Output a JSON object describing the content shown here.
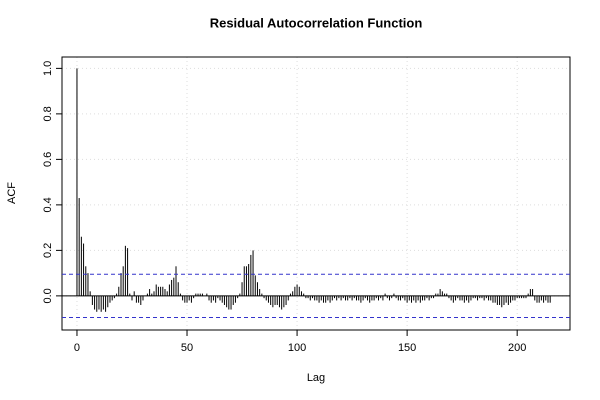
{
  "chart_data": {
    "type": "acf",
    "title": "Residual Autocorrelation Function",
    "x_label": "Lag",
    "y_label": "ACF",
    "values": [
      1.0,
      0.43,
      0.26,
      0.23,
      0.13,
      0.1,
      0.02,
      -0.04,
      -0.06,
      -0.07,
      -0.06,
      -0.07,
      -0.06,
      -0.07,
      -0.05,
      -0.03,
      -0.02,
      -0.01,
      0.01,
      0.04,
      0.1,
      0.13,
      0.22,
      0.21,
      0.01,
      -0.02,
      0.02,
      -0.03,
      -0.03,
      -0.04,
      -0.02,
      0.0,
      0.01,
      0.03,
      0.01,
      0.02,
      0.05,
      0.04,
      0.04,
      0.04,
      0.03,
      0.02,
      0.05,
      0.07,
      0.08,
      0.13,
      0.06,
      0.01,
      -0.02,
      -0.03,
      -0.03,
      -0.02,
      -0.03,
      -0.01,
      0.01,
      0.01,
      0.01,
      0.01,
      0.0,
      0.01,
      -0.02,
      -0.03,
      -0.02,
      -0.03,
      -0.01,
      -0.02,
      -0.03,
      -0.04,
      -0.05,
      -0.06,
      -0.06,
      -0.04,
      -0.03,
      -0.01,
      0.01,
      0.06,
      0.13,
      0.13,
      0.14,
      0.18,
      0.2,
      0.09,
      0.06,
      0.03,
      0.01,
      -0.01,
      -0.02,
      -0.03,
      -0.04,
      -0.05,
      -0.04,
      -0.04,
      -0.05,
      -0.06,
      -0.05,
      -0.04,
      -0.02,
      0.01,
      0.02,
      0.04,
      0.05,
      0.04,
      0.02,
      0.01,
      -0.01,
      -0.01,
      -0.02,
      -0.01,
      -0.02,
      -0.02,
      -0.03,
      -0.02,
      -0.03,
      -0.03,
      -0.02,
      -0.03,
      -0.02,
      -0.01,
      -0.02,
      -0.01,
      -0.02,
      -0.01,
      -0.02,
      -0.02,
      -0.01,
      -0.02,
      -0.01,
      -0.02,
      -0.02,
      -0.03,
      -0.02,
      -0.01,
      -0.02,
      -0.03,
      -0.02,
      -0.02,
      -0.01,
      -0.02,
      -0.01,
      -0.02,
      0.01,
      -0.01,
      -0.02,
      -0.01,
      0.01,
      -0.01,
      -0.02,
      -0.02,
      -0.01,
      -0.02,
      -0.03,
      -0.02,
      -0.03,
      -0.02,
      -0.03,
      -0.02,
      -0.03,
      -0.02,
      -0.02,
      -0.01,
      -0.02,
      -0.01,
      -0.01,
      0.01,
      0.01,
      0.03,
      0.02,
      0.01,
      0.01,
      -0.01,
      -0.02,
      -0.03,
      -0.02,
      -0.01,
      -0.02,
      -0.02,
      -0.03,
      -0.02,
      -0.03,
      -0.02,
      -0.01,
      -0.01,
      -0.02,
      -0.01,
      -0.01,
      -0.02,
      -0.01,
      -0.02,
      -0.02,
      -0.03,
      -0.03,
      -0.04,
      -0.04,
      -0.05,
      -0.04,
      -0.03,
      -0.04,
      -0.03,
      -0.02,
      -0.02,
      -0.01,
      -0.01,
      -0.01,
      -0.01,
      -0.01,
      0.01,
      0.03,
      0.03,
      -0.02,
      -0.03,
      -0.03,
      -0.02,
      -0.03,
      -0.02,
      -0.03,
      -0.03
    ],
    "color": "#000000",
    "conf_limits": [
      0.095,
      -0.095
    ],
    "conf_color": "#3333cc",
    "xlim": [
      -6.8,
      224
    ],
    "ylim": [
      -0.15,
      1.05
    ],
    "xticks": [
      0,
      50,
      100,
      150,
      200
    ],
    "yticks": [
      {
        "value": 0,
        "label": "0.0"
      },
      {
        "value": 0.2,
        "label": "0.2"
      },
      {
        "value": 0.4,
        "label": "0.4"
      },
      {
        "value": 0.6,
        "label": "0.6"
      },
      {
        "value": 0.8,
        "label": "0.8"
      },
      {
        "value": 1.0,
        "label": "1.0"
      }
    ],
    "grid": true
  }
}
